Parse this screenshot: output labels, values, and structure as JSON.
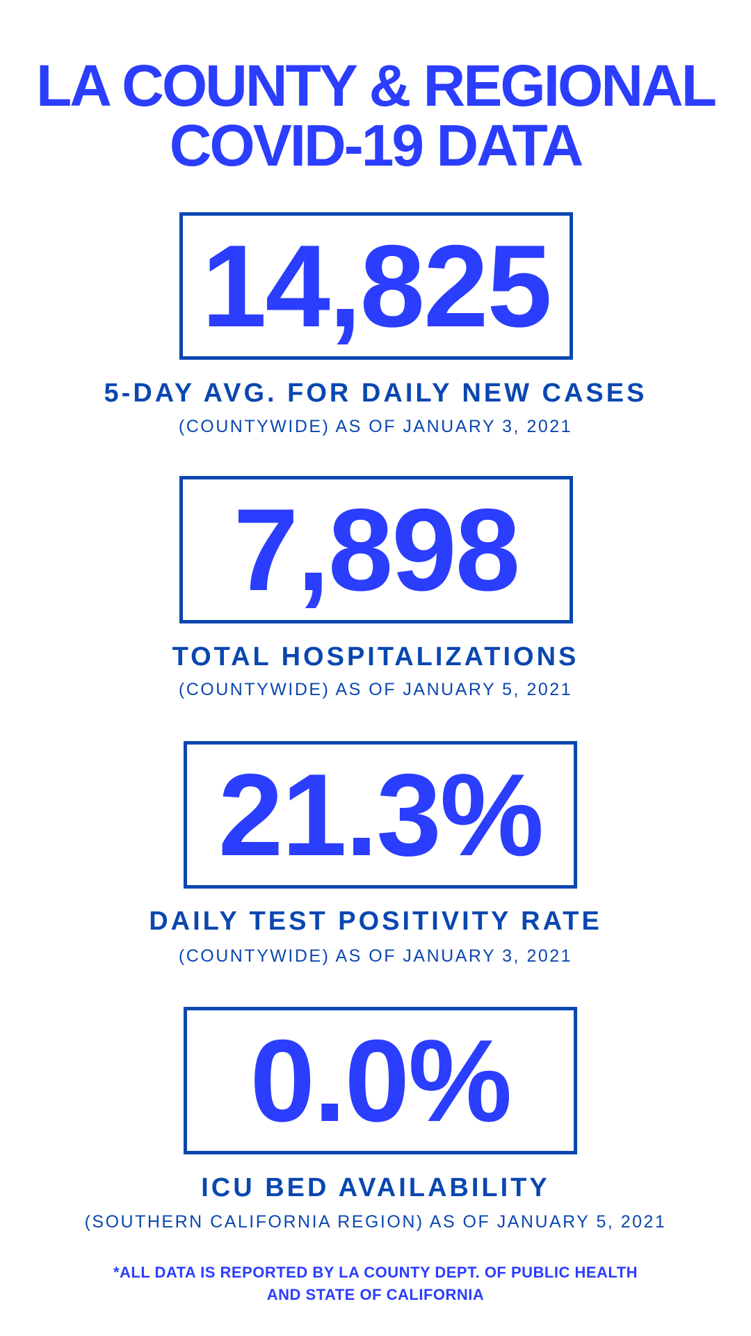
{
  "title": {
    "line1": "LA COUNTY & REGIONAL",
    "line2": "COVID-19 DATA"
  },
  "stats": [
    {
      "value": "14,825",
      "label": "5-DAY AVG. FOR DAILY NEW CASES",
      "sub": "(COUNTYWIDE) AS OF JANUARY 3, 2021"
    },
    {
      "value": "7,898",
      "label": "TOTAL HOSPITALIZATIONS",
      "sub": "(COUNTYWIDE) AS OF JANUARY 5, 2021"
    },
    {
      "value": "21.3%",
      "label": "DAILY TEST POSITIVITY RATE",
      "sub": "(COUNTYWIDE) AS OF JANUARY 3, 2021"
    },
    {
      "value": "0.0%",
      "label": "ICU BED AVAILABILITY",
      "sub": "(SOUTHERN CALIFORNIA REGION) AS OF JANUARY 5, 2021"
    }
  ],
  "footer": {
    "line1": "*ALL DATA IS REPORTED BY LA COUNTY DEPT. OF PUBLIC HEALTH",
    "line2": "AND STATE OF CALIFORNIA"
  },
  "colors": {
    "accent": "#2b3dfd",
    "dark_blue": "#0a47b0"
  }
}
